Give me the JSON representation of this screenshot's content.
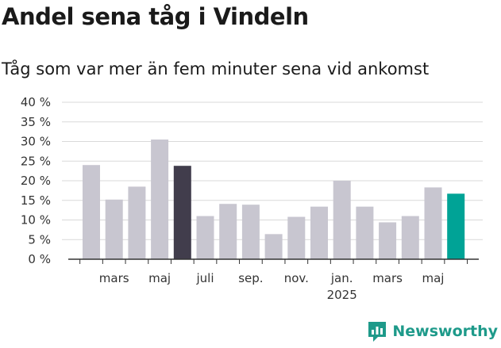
{
  "header": {
    "title": "Andel sena tåg i Vindeln",
    "subtitle": "Tåg som var mer än fem minuter sena vid ankomst"
  },
  "brand": {
    "name": "Newsworthy",
    "icon": "newsworthy-logo-icon",
    "color": "#1e9a8a"
  },
  "colors": {
    "bar": "#c8c6d0",
    "highlight": "#413d4c",
    "latest": "#00a396",
    "grid": "#d9d9d9",
    "axis": "#333333"
  },
  "chart_data": {
    "type": "bar",
    "unit": "%",
    "ylim": [
      0,
      40
    ],
    "yticks": [
      0,
      5,
      10,
      15,
      20,
      25,
      30,
      35,
      40
    ],
    "ytick_labels": [
      "0 %",
      "5 %",
      "10 %",
      "15 %",
      "20 %",
      "25 %",
      "30 %",
      "35 %",
      "40 %"
    ],
    "categories": [
      "2024-02",
      "2024-03",
      "2024-04",
      "2024-05",
      "2024-06",
      "2024-07",
      "2024-08",
      "2024-09",
      "2024-10",
      "2024-11",
      "2024-12",
      "2025-01",
      "2025-02",
      "2025-03",
      "2025-04",
      "2025-05",
      "2025-06"
    ],
    "values": [
      24.0,
      15.2,
      18.5,
      30.5,
      23.8,
      11.0,
      14.1,
      13.9,
      6.4,
      10.8,
      13.4,
      20.0,
      13.4,
      9.4,
      11.0,
      18.3,
      16.7
    ],
    "highlight_index": 4,
    "latest_index": 16,
    "xtick_labels": [
      {
        "index": 1,
        "label": "mars"
      },
      {
        "index": 3,
        "label": "maj"
      },
      {
        "index": 5,
        "label": "juli"
      },
      {
        "index": 7,
        "label": "sep."
      },
      {
        "index": 9,
        "label": "nov."
      },
      {
        "index": 11,
        "label": "jan.",
        "sublabel": "2025"
      },
      {
        "index": 13,
        "label": "mars"
      },
      {
        "index": 15,
        "label": "maj"
      }
    ],
    "grid": true,
    "legend": "none"
  }
}
